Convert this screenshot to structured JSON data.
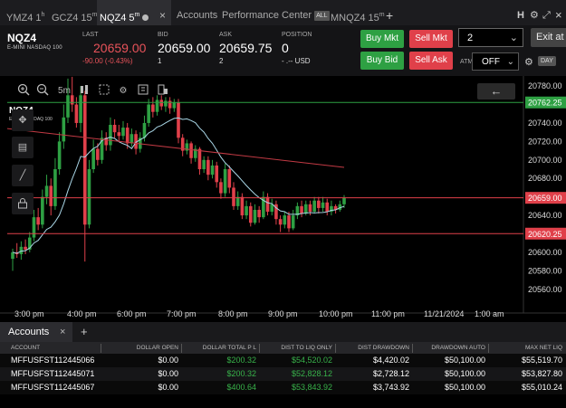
{
  "tabs": [
    {
      "label": "YMZ4 1",
      "sup": "h",
      "active": false
    },
    {
      "label": "GCZ4 15",
      "sup": "m",
      "active": false
    },
    {
      "label": "NQZ4 5",
      "sup": "m",
      "active": true
    },
    {
      "label": "Accounts",
      "active": false
    },
    {
      "label": "Performance Center",
      "badge": "ALL",
      "active": false
    },
    {
      "label": "MNQZ4 15",
      "sup": "m",
      "active": false
    }
  ],
  "tab_close": "×",
  "tab_add": "+",
  "window_icons": {
    "h": "H",
    "settings": "⚙",
    "expand": "⤢",
    "close": "×"
  },
  "quote": {
    "symbol": "NQZ4",
    "subtitle": "E-MINI NASDAQ 100",
    "last_label": "LAST",
    "last": "20659.00",
    "change": "-90.00 (-0.43%)",
    "bid_label": "BID",
    "bid": "20659.00",
    "bid_size": "1",
    "ask_label": "ASK",
    "ask": "20659.75",
    "ask_size": "2",
    "position_label": "POSITION",
    "position": "0",
    "position_sub": "- .-- USD"
  },
  "buttons": {
    "buy_mkt": "Buy Mkt",
    "sell_mkt": "Sell Mkt",
    "buy_bid": "Buy Bid",
    "sell_ask": "Sell Ask",
    "exit": "Exit at M"
  },
  "quantity": "2",
  "atm_label": "ATM",
  "atm_value": "OFF",
  "day_label": "DAY",
  "chart_toolbar": {
    "timeframe": "5m"
  },
  "chart_symbol": "NQZ4",
  "chart_symbol_sub": "E-MINI NASDAQ 100",
  "colors": {
    "up": "#2ea043",
    "down": "#e0404a",
    "bg": "#000000",
    "sma": "#a9d6e6",
    "trend": "#c23a44",
    "line_level": "#2ea043",
    "red_level": "#e0404a"
  },
  "chart_data": {
    "type": "candlestick",
    "price_axis": [
      "20780.00",
      "20760.00",
      "20740.00",
      "20720.00",
      "20700.00",
      "20680.00",
      "20660.00",
      "20640.00",
      "20620.00",
      "20600.00",
      "20580.00",
      "20560.00"
    ],
    "ylim": [
      20550,
      20785
    ],
    "time_axis": [
      "3:00 pm",
      "4:00 pm",
      "6:00 pm",
      "7:00 pm",
      "8:00 pm",
      "9:00 pm",
      "10:00 pm",
      "11:00 pm",
      "11/21/2024",
      "1:00 am"
    ],
    "levels": [
      {
        "label": "20762.25",
        "price": 20762.25,
        "color": "green"
      },
      {
        "label": "20659.00",
        "price": 20659.0,
        "color": "red"
      },
      {
        "label": "20620.25",
        "price": 20620.25,
        "color": "red"
      }
    ],
    "candles": [
      [
        20593,
        20600,
        20580,
        20604
      ],
      [
        20600,
        20598,
        20594,
        20610
      ],
      [
        20598,
        20606,
        20592,
        20612
      ],
      [
        20606,
        20603,
        20598,
        20614
      ],
      [
        20603,
        20616,
        20600,
        20622
      ],
      [
        20616,
        20638,
        20612,
        20646
      ],
      [
        20638,
        20630,
        20624,
        20648
      ],
      [
        20630,
        20660,
        20626,
        20668
      ],
      [
        20660,
        20672,
        20652,
        20684
      ],
      [
        20672,
        20650,
        20640,
        20680
      ],
      [
        20650,
        20690,
        20646,
        20702
      ],
      [
        20690,
        20720,
        20684,
        20730
      ],
      [
        20720,
        20746,
        20712,
        20760
      ],
      [
        20746,
        20770,
        20740,
        20788
      ],
      [
        20770,
        20760,
        20752,
        20790
      ],
      [
        20760,
        20740,
        20735,
        20768
      ],
      [
        20740,
        20770,
        20730,
        20780
      ],
      [
        20770,
        20630,
        20590,
        20775
      ],
      [
        20630,
        20690,
        20626,
        20700
      ],
      [
        20690,
        20712,
        20686,
        20722
      ],
      [
        20712,
        20700,
        20694,
        20718
      ],
      [
        20700,
        20724,
        20696,
        20732
      ],
      [
        20724,
        20716,
        20710,
        20730
      ],
      [
        20716,
        20738,
        20710,
        20746
      ],
      [
        20738,
        20730,
        20724,
        20744
      ],
      [
        20730,
        20726,
        20720,
        20738
      ],
      [
        20726,
        20735,
        20722,
        20742
      ],
      [
        20735,
        20718,
        20712,
        20740
      ],
      [
        20718,
        20728,
        20714,
        20734
      ],
      [
        20728,
        20712,
        20706,
        20732
      ],
      [
        20712,
        20724,
        20708,
        20730
      ],
      [
        20724,
        20740,
        20720,
        20748
      ],
      [
        20740,
        20760,
        20736,
        20766
      ],
      [
        20760,
        20752,
        20746,
        20768
      ],
      [
        20752,
        20765,
        20748,
        20770
      ],
      [
        20765,
        20758,
        20754,
        20770
      ],
      [
        20758,
        20764,
        20752,
        20768
      ],
      [
        20764,
        20756,
        20750,
        20768
      ],
      [
        20756,
        20762,
        20752,
        20766
      ],
      [
        20762,
        20724,
        20718,
        20766
      ],
      [
        20724,
        20710,
        20704,
        20728
      ],
      [
        20710,
        20718,
        20706,
        20722
      ],
      [
        20718,
        20702,
        20696,
        20720
      ],
      [
        20702,
        20712,
        20698,
        20716
      ],
      [
        20712,
        20690,
        20684,
        20714
      ],
      [
        20690,
        20700,
        20686,
        20704
      ],
      [
        20700,
        20684,
        20678,
        20704
      ],
      [
        20684,
        20694,
        20680,
        20700
      ],
      [
        20694,
        20676,
        20670,
        20698
      ],
      [
        20676,
        20664,
        20658,
        20680
      ],
      [
        20664,
        20690,
        20660,
        20696
      ],
      [
        20690,
        20670,
        20664,
        20694
      ],
      [
        20670,
        20650,
        20646,
        20676
      ],
      [
        20650,
        20660,
        20646,
        20666
      ],
      [
        20660,
        20640,
        20636,
        20664
      ],
      [
        20640,
        20650,
        20636,
        20656
      ],
      [
        20650,
        20632,
        20628,
        20654
      ],
      [
        20632,
        20646,
        20630,
        20652
      ],
      [
        20646,
        20638,
        20632,
        20650
      ],
      [
        20638,
        20660,
        20636,
        20666
      ],
      [
        20660,
        20644,
        20640,
        20664
      ],
      [
        20644,
        20652,
        20640,
        20658
      ],
      [
        20652,
        20636,
        20630,
        20656
      ],
      [
        20636,
        20630,
        20622,
        20640
      ],
      [
        20630,
        20640,
        20626,
        20644
      ],
      [
        20640,
        20626,
        20622,
        20644
      ],
      [
        20626,
        20640,
        20624,
        20646
      ],
      [
        20640,
        20650,
        20636,
        20654
      ],
      [
        20650,
        20642,
        20638,
        20656
      ],
      [
        20642,
        20652,
        20640,
        20656
      ],
      [
        20652,
        20644,
        20640,
        20656
      ],
      [
        20644,
        20656,
        20642,
        20660
      ],
      [
        20656,
        20648,
        20642,
        20660
      ],
      [
        20648,
        20654,
        20644,
        20660
      ],
      [
        20654,
        20644,
        20640,
        20658
      ],
      [
        20644,
        20650,
        20640,
        20656
      ],
      [
        20650,
        20646,
        20642,
        20652
      ],
      [
        20646,
        20652,
        20644,
        20656
      ],
      [
        20652,
        20659,
        20648,
        20662
      ]
    ]
  },
  "accounts": {
    "tab_label": "Accounts",
    "close": "×",
    "add": "+",
    "columns": [
      "ACCOUNT",
      "DOLLAR OPEN",
      "DOLLAR TOTAL P L",
      "DIST TO LIQ ONLY",
      "DIST DRAWDOWN",
      "DRAWDOWN AUTO",
      "MAX NET LIQ"
    ],
    "rows": [
      {
        "account": "MFFUSFST112445066",
        "open": "$0.00",
        "total_pl": "$200.32",
        "dist_liq": "$54,520.02",
        "dist_dd": "$4,420.02",
        "dd_auto": "$50,100.00",
        "max_liq": "$55,519.70"
      },
      {
        "account": "MFFUSFST112445071",
        "open": "$0.00",
        "total_pl": "$200.32",
        "dist_liq": "$52,828.12",
        "dist_dd": "$2,728.12",
        "dd_auto": "$50,100.00",
        "max_liq": "$53,827.80"
      },
      {
        "account": "MFFUSFST112445067",
        "open": "$0.00",
        "total_pl": "$400.64",
        "dist_liq": "$53,843.92",
        "dist_dd": "$3,743.92",
        "dd_auto": "$50,100.00",
        "max_liq": "$55,010.24"
      }
    ]
  }
}
